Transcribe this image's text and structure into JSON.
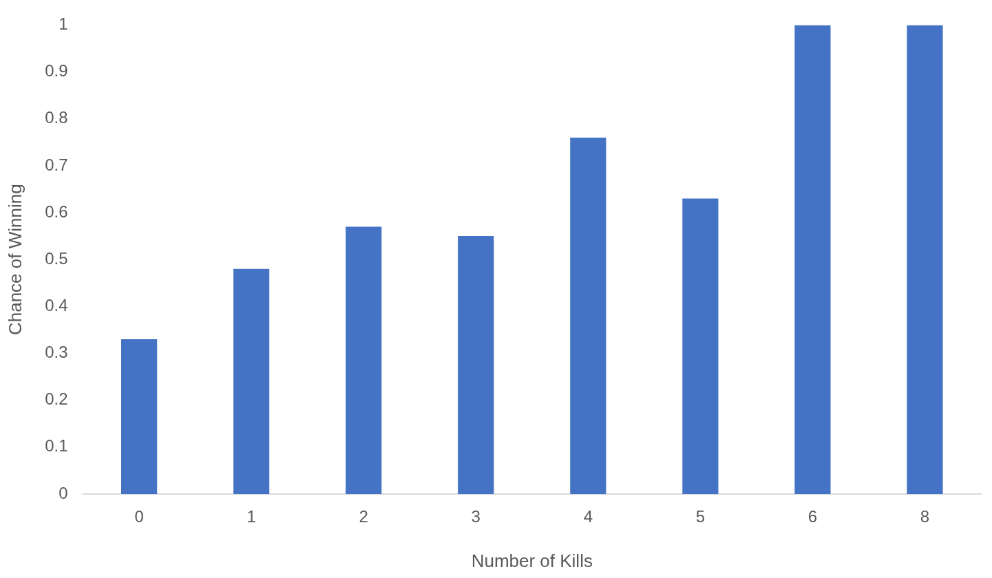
{
  "chart_data": {
    "type": "bar",
    "xlabel": "Number of Kills",
    "ylabel": "Chance of Winning",
    "categories": [
      "0",
      "1",
      "2",
      "3",
      "4",
      "5",
      "6",
      "8"
    ],
    "values": [
      0.33,
      0.48,
      0.57,
      0.55,
      0.76,
      0.63,
      1,
      1
    ],
    "color": "#4472c4",
    "ylim": [
      0,
      1
    ],
    "yticks": [
      0,
      0.1,
      0.2,
      0.3,
      0.4,
      0.5,
      0.6,
      0.7,
      0.8,
      0.9,
      1
    ],
    "grid": false,
    "legend": false
  }
}
